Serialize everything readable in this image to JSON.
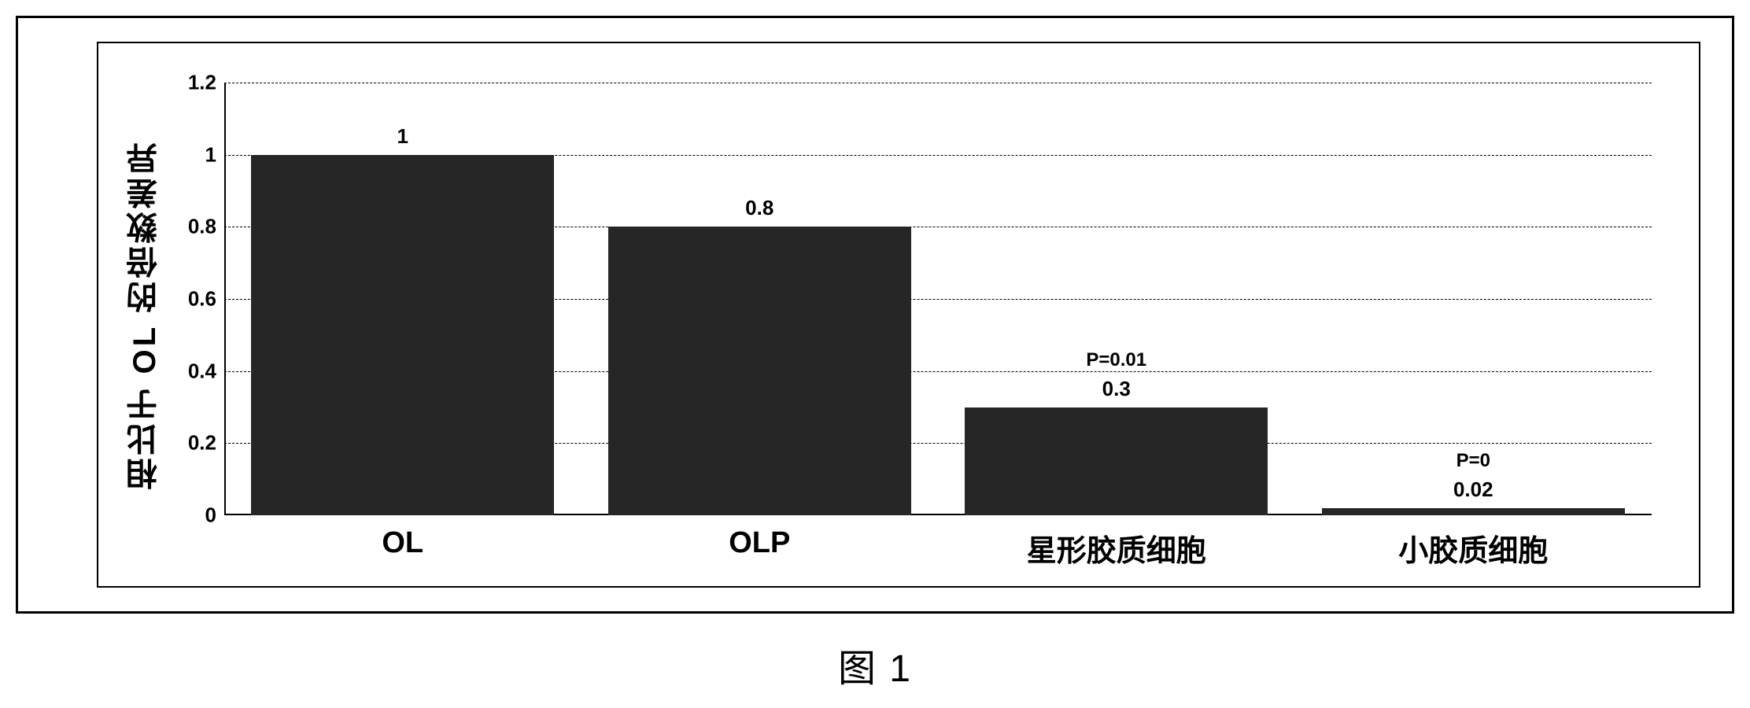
{
  "chart": {
    "type": "bar",
    "y_axis_label": "相比于 OL 的倍数差异",
    "categories": [
      "OL",
      "OLP",
      "星形胶质细胞",
      "小胶质细胞"
    ],
    "values": [
      1,
      0.8,
      0.3,
      0.02
    ],
    "value_labels": [
      "1",
      "0.8",
      "0.3",
      "0.02"
    ],
    "p_labels": [
      "",
      "",
      "P=0.01",
      "P=0"
    ],
    "ylim": [
      0,
      1.2
    ],
    "yticks": [
      0,
      0.2,
      0.4,
      0.6,
      0.8,
      1,
      1.2
    ],
    "ytick_labels": [
      "0",
      "0.2",
      "0.4",
      "0.6",
      "0.8",
      "1",
      "1.2"
    ],
    "bar_color": "#262626",
    "background_color": "#ffffff",
    "grid_color": "#000000",
    "border_color": "#000000",
    "bar_width": 0.85,
    "label_fontsize": 40,
    "tick_fontsize": 26,
    "xtick_fontsize": 38
  },
  "caption": "图 1"
}
